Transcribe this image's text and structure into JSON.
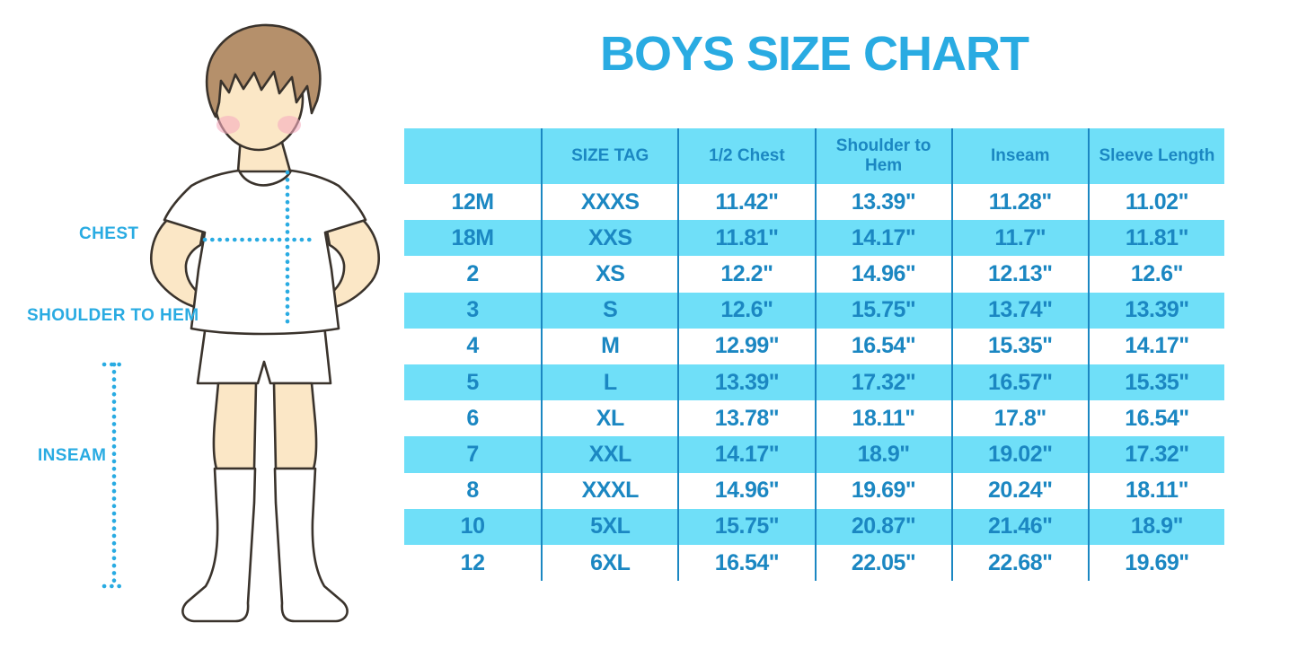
{
  "title": "BOYS SIZE CHART",
  "illustration": {
    "labels": {
      "chest": "CHEST",
      "shoulder_to_hem": "SHOULDER TO HEM",
      "inseam": "INSEAM"
    }
  },
  "colors": {
    "accent": "#29ABE2",
    "table_text": "#1B87C2",
    "band": "#6FDFF8",
    "outline": "#3A332C",
    "skin": "#FBE7C6",
    "hair": "#B5906B",
    "cheek": "#F7AEC0"
  },
  "chart_data": {
    "type": "table",
    "columns": [
      "",
      "SIZE TAG",
      "1/2 Chest",
      "Shoulder to Hem",
      "Inseam",
      "Sleeve Length"
    ],
    "rows": [
      [
        "12M",
        "XXXS",
        "11.42\"",
        "13.39\"",
        "11.28\"",
        "11.02\""
      ],
      [
        "18M",
        "XXS",
        "11.81\"",
        "14.17\"",
        "11.7\"",
        "11.81\""
      ],
      [
        "2",
        "XS",
        "12.2\"",
        "14.96\"",
        "12.13\"",
        "12.6\""
      ],
      [
        "3",
        "S",
        "12.6\"",
        "15.75\"",
        "13.74\"",
        "13.39\""
      ],
      [
        "4",
        "M",
        "12.99\"",
        "16.54\"",
        "15.35\"",
        "14.17\""
      ],
      [
        "5",
        "L",
        "13.39\"",
        "17.32\"",
        "16.57\"",
        "15.35\""
      ],
      [
        "6",
        "XL",
        "13.78\"",
        "18.11\"",
        "17.8\"",
        "16.54\""
      ],
      [
        "7",
        "XXL",
        "14.17\"",
        "18.9\"",
        "19.02\"",
        "17.32\""
      ],
      [
        "8",
        "XXXL",
        "14.96\"",
        "19.69\"",
        "20.24\"",
        "18.11\""
      ],
      [
        "10",
        "5XL",
        "15.75\"",
        "20.87\"",
        "21.46\"",
        "18.9\""
      ],
      [
        "12",
        "6XL",
        "16.54\"",
        "22.05\"",
        "22.68\"",
        "19.69\""
      ]
    ],
    "title": "BOYS SIZE CHART",
    "measurement_unit": "inches",
    "legend_position": "none",
    "grid": "column-dividers"
  }
}
